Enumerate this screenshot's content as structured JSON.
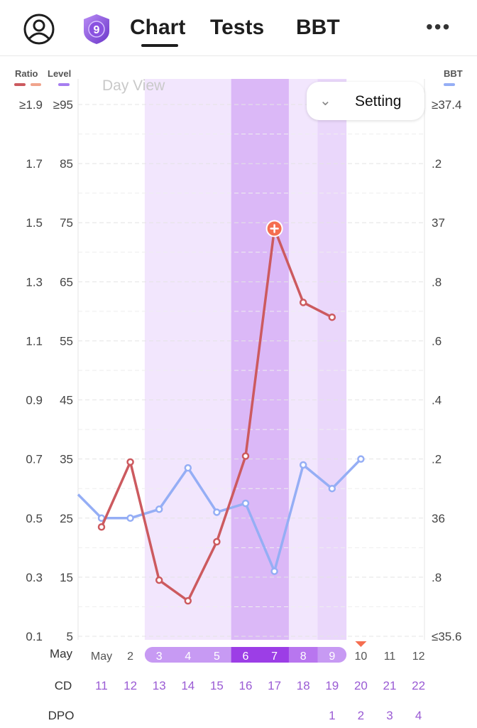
{
  "header": {
    "tabs": [
      "Chart",
      "Tests",
      "BBT"
    ],
    "badge_number": "9",
    "more_label": "•••"
  },
  "chart": {
    "view_label": "Day View",
    "setting_label": "Setting"
  },
  "chart_data": {
    "type": "line",
    "legend": {
      "ratio": "Ratio",
      "level": "Level",
      "bbt": "BBT"
    },
    "colors": {
      "ratio": "#cc5a5f",
      "level": "#a67ef0",
      "bbt": "#95aef5",
      "peak": "#f56e50",
      "fertile_window": "#f2e6fd",
      "fertile_window_mid": "#ead7fb",
      "peak_days": "#dbb8f7",
      "label_purple": "#9a5bd4"
    },
    "left_axis_ratio_ticks": [
      "≥1.9",
      "1.7",
      "1.5",
      "1.3",
      "1.1",
      "0.9",
      "0.7",
      "0.5",
      "0.3",
      "0.1"
    ],
    "left_axis_level_ticks": [
      "≥95",
      "85",
      "75",
      "65",
      "55",
      "45",
      "35",
      "25",
      "15",
      "5"
    ],
    "right_axis_bbt_ticks": [
      "≥37.4",
      ".2",
      "37",
      ".8",
      ".6",
      ".4",
      ".2",
      "36",
      ".8",
      "≤35.6"
    ],
    "ratio_range": [
      0.1,
      1.9
    ],
    "bbt_range": [
      35.6,
      37.4
    ],
    "x_row_labels": {
      "date": "May",
      "cd": "CD",
      "dpo": "DPO"
    },
    "dates": [
      "May",
      "2",
      "3",
      "4",
      "5",
      "6",
      "7",
      "8",
      "9",
      "10",
      "11",
      "12"
    ],
    "cycle_days": [
      "11",
      "12",
      "13",
      "14",
      "15",
      "16",
      "17",
      "18",
      "19",
      "20",
      "21",
      "22"
    ],
    "dpo": [
      "",
      "",
      "",
      "",
      "",
      "",
      "",
      "",
      "1",
      "2",
      "3",
      "4"
    ],
    "fertile_window": {
      "start_index": 2,
      "end_index": 8
    },
    "peak_window": {
      "start_index": 5,
      "end_index": 7
    },
    "ovulation_marker_index": 9,
    "series": [
      {
        "name": "Ratio",
        "values": [
          0.47,
          0.69,
          0.29,
          0.22,
          0.42,
          0.71,
          1.48,
          1.23,
          1.18,
          null,
          null,
          null
        ],
        "peak_index": 6
      },
      {
        "name": "BBT",
        "values": [
          36.0,
          36.0,
          36.03,
          36.17,
          36.02,
          36.05,
          35.82,
          36.18,
          36.1,
          36.2,
          null,
          null
        ],
        "lead_in_value": 36.08
      }
    ]
  }
}
